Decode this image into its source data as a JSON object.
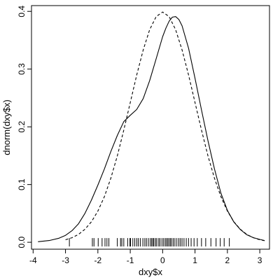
{
  "chart_data": {
    "type": "line",
    "title": "",
    "xlabel": "dxy$x",
    "ylabel": "dnorm(dxy$x)",
    "xlim": [
      -4.05,
      3.3
    ],
    "ylim": [
      -0.012,
      0.41
    ],
    "x_ticks": [
      -4,
      -3,
      -2,
      -1,
      0,
      1,
      2,
      3
    ],
    "y_ticks": [
      0.0,
      0.1,
      0.2,
      0.3,
      0.4
    ],
    "x_tick_labels": [
      "-4",
      "-3",
      "-2",
      "-1",
      "0",
      "1",
      "2",
      "3"
    ],
    "y_tick_labels": [
      "0.0",
      "0.1",
      "0.2",
      "0.3",
      "0.4"
    ],
    "grid": false,
    "legend": "none",
    "series": [
      {
        "style": "solid",
        "x": [
          -3.85,
          -3.5,
          -3.2,
          -3.0,
          -2.8,
          -2.6,
          -2.4,
          -2.2,
          -2.0,
          -1.8,
          -1.6,
          -1.4,
          -1.2,
          -1.0,
          -0.8,
          -0.6,
          -0.4,
          -0.2,
          0.0,
          0.1,
          0.2,
          0.3,
          0.4,
          0.5,
          0.6,
          0.8,
          1.0,
          1.2,
          1.4,
          1.6,
          1.8,
          2.0,
          2.2,
          2.4,
          2.6,
          2.8,
          3.0,
          3.15
        ],
        "y": [
          0.001,
          0.003,
          0.007,
          0.012,
          0.02,
          0.032,
          0.05,
          0.073,
          0.099,
          0.127,
          0.157,
          0.185,
          0.209,
          0.22,
          0.23,
          0.249,
          0.28,
          0.318,
          0.356,
          0.371,
          0.383,
          0.39,
          0.391,
          0.386,
          0.375,
          0.336,
          0.284,
          0.229,
          0.176,
          0.127,
          0.085,
          0.055,
          0.035,
          0.022,
          0.013,
          0.008,
          0.005,
          0.003
        ]
      },
      {
        "style": "dashed",
        "x": [
          -3.0,
          -2.8,
          -2.6,
          -2.4,
          -2.2,
          -2.0,
          -1.8,
          -1.6,
          -1.4,
          -1.2,
          -1.0,
          -0.8,
          -0.6,
          -0.4,
          -0.2,
          0.0,
          0.2,
          0.4,
          0.6,
          0.8,
          1.0,
          1.2,
          1.4,
          1.6,
          1.8,
          2.0,
          2.2,
          2.4,
          2.6,
          2.8,
          3.0,
          3.15
        ],
        "y": [
          0.0044,
          0.0079,
          0.0136,
          0.0224,
          0.0355,
          0.054,
          0.079,
          0.1109,
          0.1497,
          0.1942,
          0.242,
          0.2897,
          0.3332,
          0.3683,
          0.391,
          0.3989,
          0.391,
          0.3683,
          0.3332,
          0.2897,
          0.242,
          0.1942,
          0.1497,
          0.1109,
          0.079,
          0.054,
          0.0355,
          0.0224,
          0.0136,
          0.0079,
          0.0044,
          0.0028
        ]
      }
    ],
    "rug": [
      -2.88,
      -2.17,
      -2.12,
      -1.99,
      -1.87,
      -1.78,
      -1.72,
      -1.66,
      -1.4,
      -1.3,
      -1.26,
      -1.2,
      -1.08,
      -1.01,
      -0.99,
      -0.92,
      -0.86,
      -0.8,
      -0.75,
      -0.69,
      -0.61,
      -0.55,
      -0.5,
      -0.44,
      -0.38,
      -0.34,
      -0.3,
      -0.27,
      -0.22,
      -0.18,
      -0.12,
      -0.08,
      -0.02,
      0.03,
      0.08,
      0.12,
      0.16,
      0.2,
      0.24,
      0.28,
      0.33,
      0.38,
      0.44,
      0.5,
      0.55,
      0.6,
      0.66,
      0.73,
      0.8,
      0.88,
      0.97,
      1.07,
      1.2,
      1.33,
      1.49,
      1.65,
      1.78,
      1.9,
      2.06
    ]
  }
}
